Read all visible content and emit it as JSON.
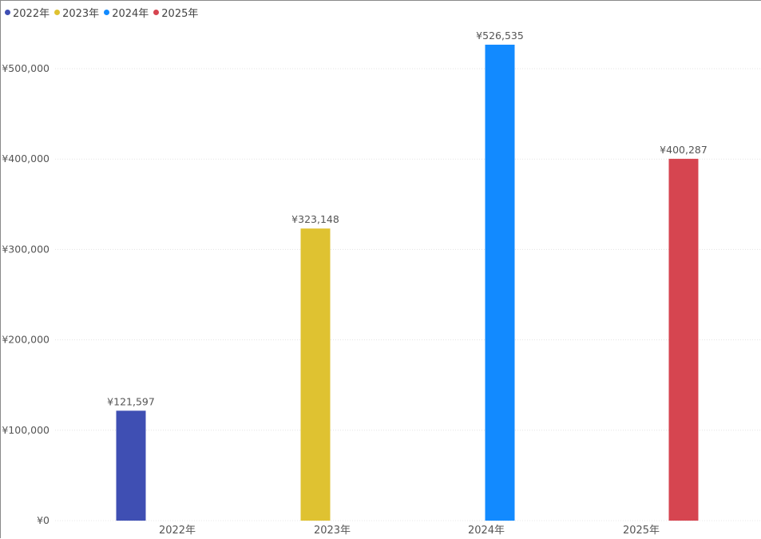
{
  "chart_data": {
    "type": "bar",
    "title": "",
    "xlabel": "",
    "ylabel": "",
    "categories": [
      "2022年",
      "2023年",
      "2024年",
      "2025年"
    ],
    "series": [
      {
        "name": "2022年",
        "color": "#3f4fb3",
        "values": [
          121597,
          null,
          null,
          null
        ]
      },
      {
        "name": "2023年",
        "color": "#dfc231",
        "values": [
          null,
          323148,
          null,
          null
        ]
      },
      {
        "name": "2024年",
        "color": "#128aff",
        "values": [
          null,
          null,
          526535,
          null
        ]
      },
      {
        "name": "2025年",
        "color": "#d64550",
        "values": [
          null,
          null,
          null,
          400287
        ]
      }
    ],
    "data_labels": [
      "¥121,597",
      "¥323,148",
      "¥526,535",
      "¥400,287"
    ],
    "ylim": [
      0,
      530000
    ],
    "y_ticks": [
      0,
      100000,
      200000,
      300000,
      400000,
      500000
    ],
    "y_tick_labels": [
      "¥0",
      "¥100,000",
      "¥200,000",
      "¥300,000",
      "¥400,000",
      "¥500,000"
    ],
    "grid": true,
    "legend_position": "top-left"
  }
}
